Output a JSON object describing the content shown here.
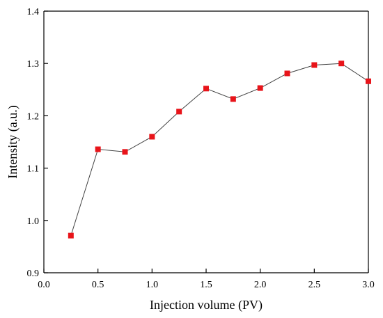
{
  "chart_data": {
    "type": "line",
    "title": "",
    "xlabel": "Injection volume (PV)",
    "ylabel": "Intensity (a.u.)",
    "xlim": [
      0.0,
      3.0
    ],
    "ylim": [
      0.9,
      1.4
    ],
    "x_ticks": [
      0.0,
      0.5,
      1.0,
      1.5,
      2.0,
      2.5,
      3.0
    ],
    "x_tick_labels": [
      "0.0",
      "0.5",
      "1.0",
      "1.5",
      "2.0",
      "2.5",
      "3.0"
    ],
    "y_ticks": [
      0.9,
      1.0,
      1.1,
      1.2,
      1.3,
      1.4
    ],
    "y_tick_labels": [
      "0.9",
      "1.0",
      "1.1",
      "1.2",
      "1.3",
      "1.4"
    ],
    "grid": false,
    "marker": "square",
    "marker_color": "#e8141a",
    "line_color": "#404040",
    "series": [
      {
        "x": [
          0.25,
          0.5,
          0.75,
          1.0,
          1.25,
          1.5,
          1.75,
          2.0,
          2.25,
          2.5,
          2.75,
          3.0
        ],
        "values": [
          0.971,
          1.136,
          1.131,
          1.16,
          1.208,
          1.252,
          1.232,
          1.253,
          1.281,
          1.297,
          1.3,
          1.266
        ]
      }
    ]
  }
}
